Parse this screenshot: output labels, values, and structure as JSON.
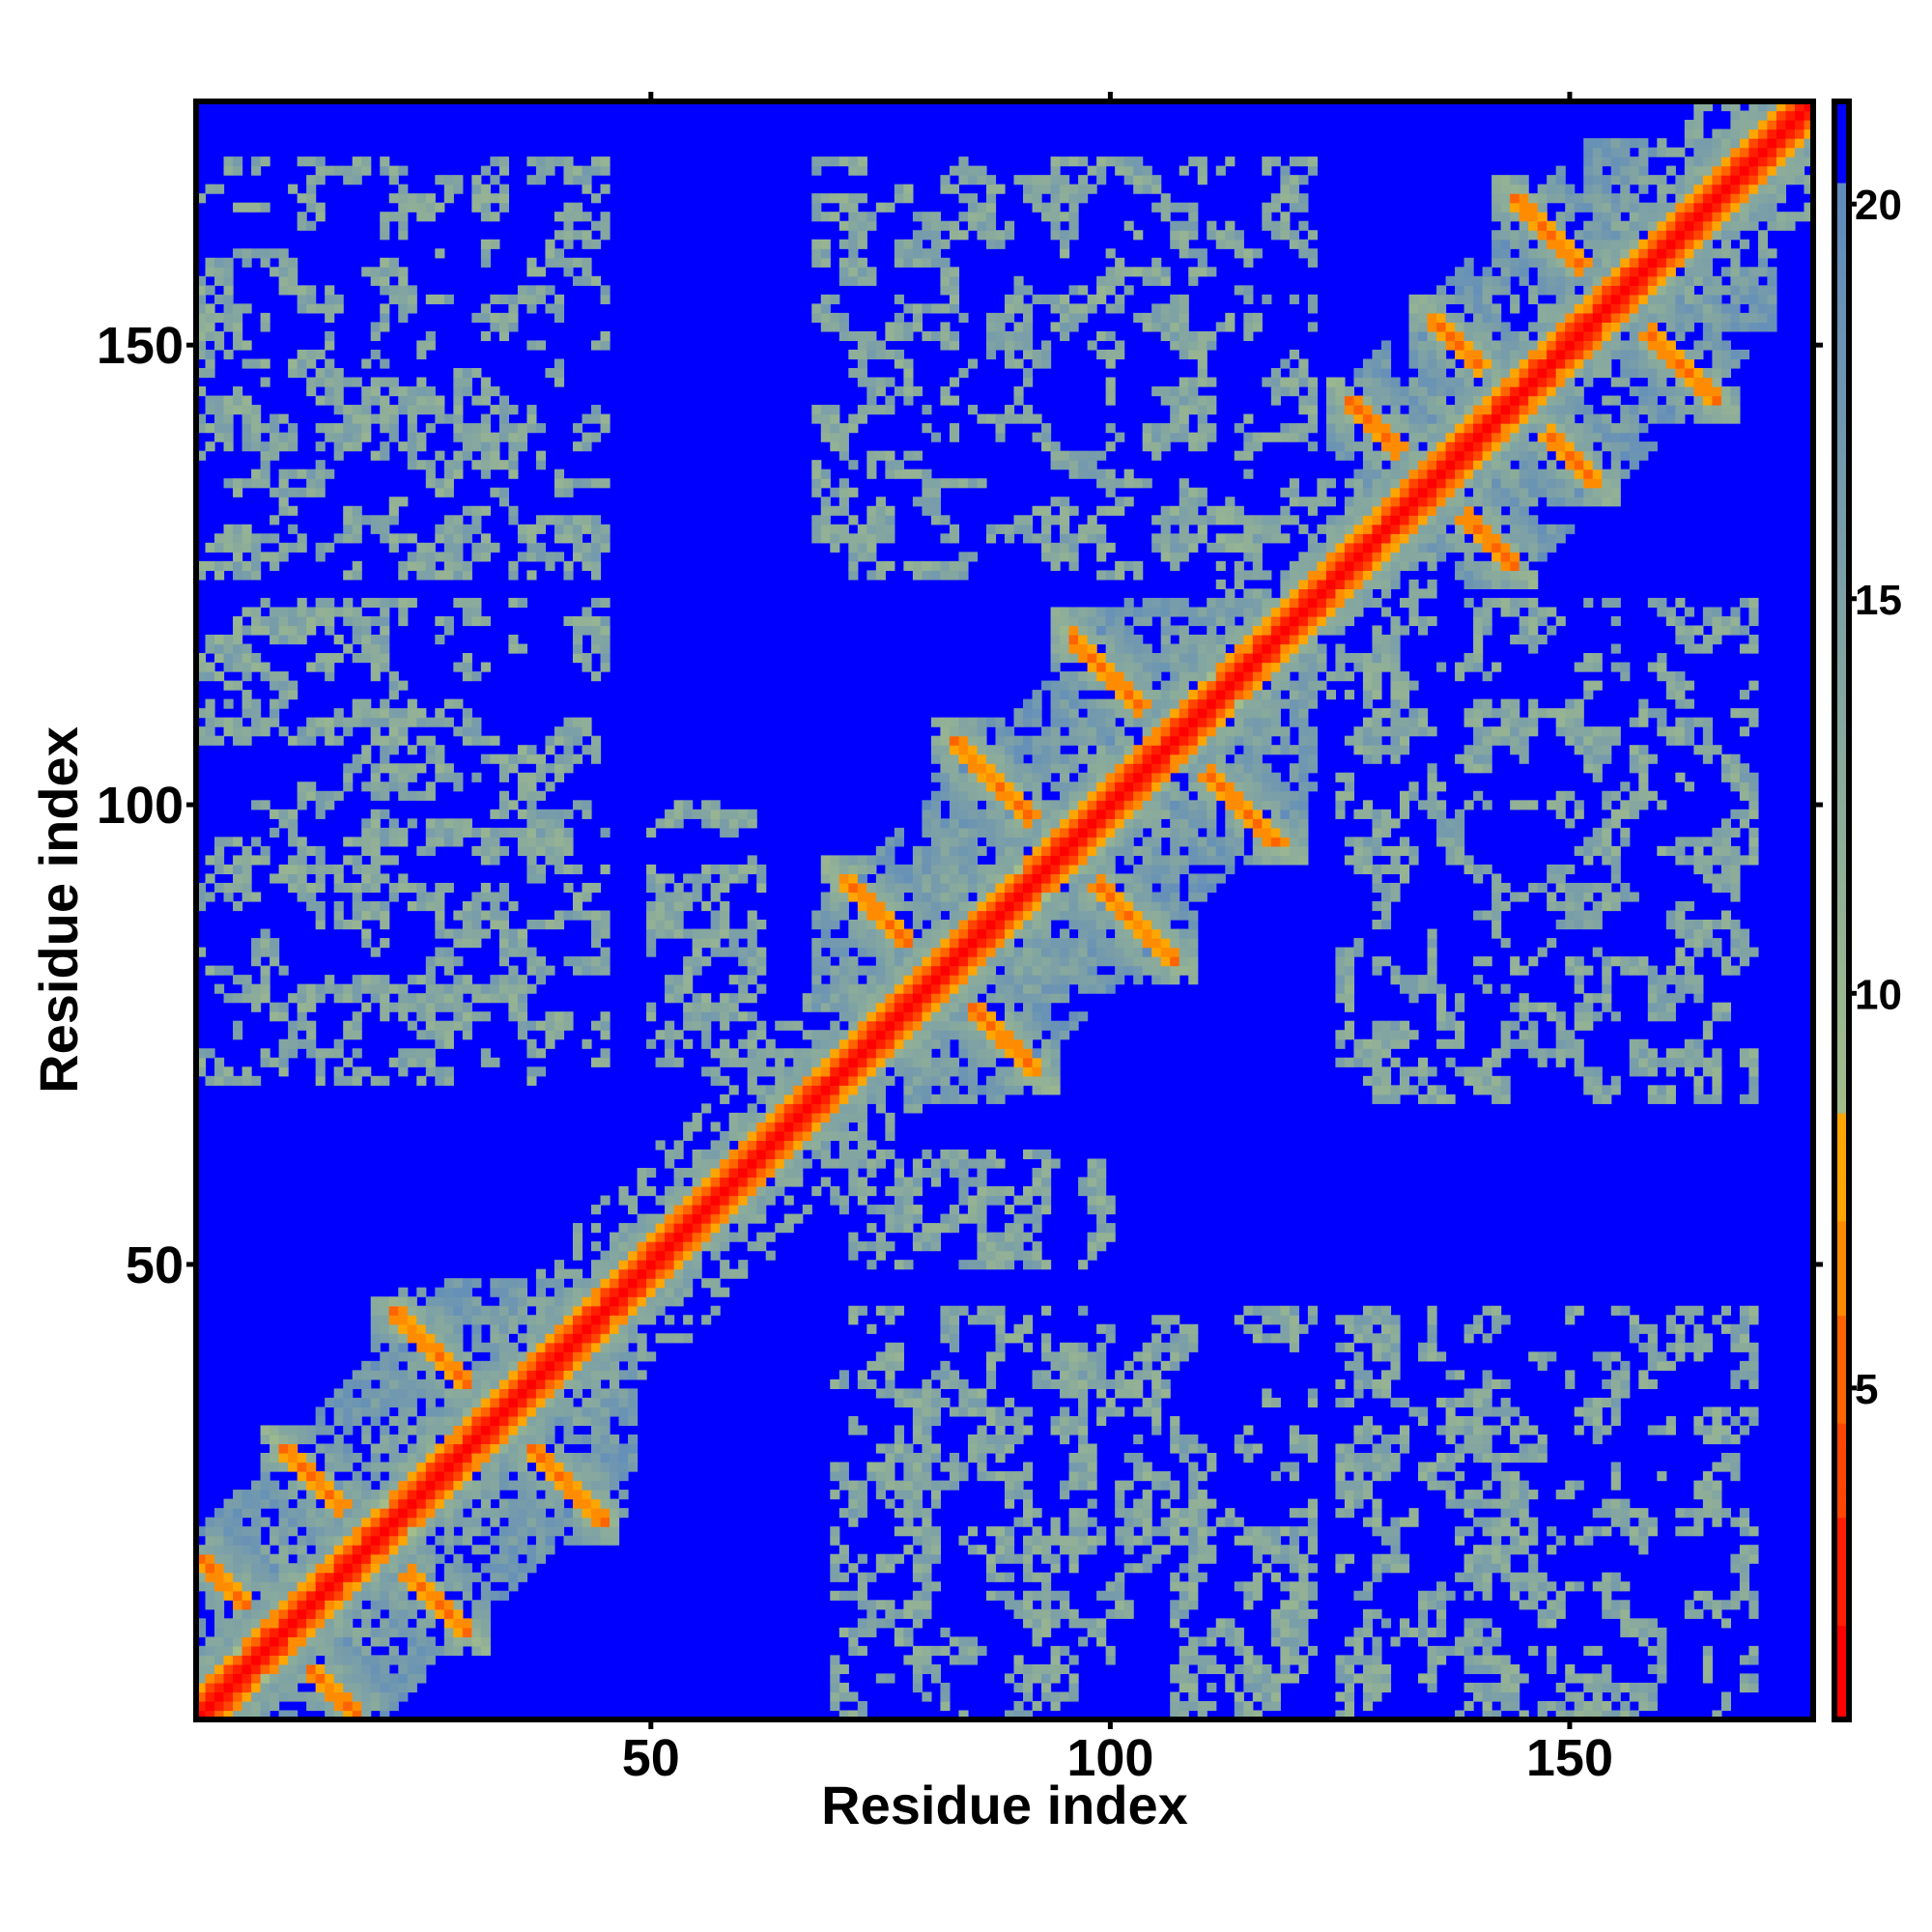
{
  "chart_data": {
    "type": "heatmap",
    "title": "",
    "xlabel": "Residue index",
    "ylabel": "Residue index",
    "n_residues": 176,
    "xlim": [
      0.5,
      176.5
    ],
    "ylim": [
      0.5,
      176.5
    ],
    "x_ticks": [
      50,
      100,
      150
    ],
    "y_ticks": [
      50,
      100,
      150
    ],
    "x_tick_labels": [
      "50",
      "100",
      "150"
    ],
    "y_tick_labels": [
      "50",
      "100",
      "150"
    ],
    "colorbar": {
      "range": [
        0.8,
        21.3
      ],
      "ticks": [
        5,
        10,
        15,
        20
      ],
      "tick_labels": [
        "5",
        "10",
        "15",
        "20"
      ],
      "steps": [
        {
          "max": 2.07,
          "color": "#ff0000"
        },
        {
          "max": 3.34,
          "color": "#ff1e00"
        },
        {
          "max": 4.6,
          "color": "#ff4500"
        },
        {
          "max": 5.9,
          "color": "#ff6400"
        },
        {
          "max": 7.2,
          "color": "#ff8c00"
        },
        {
          "max": 8.45,
          "color": "#ffa500"
        }
      ],
      "gradient_from": {
        "value": 8.45,
        "color": "#a3bd89"
      },
      "gradient_to": {
        "value": 20.2,
        "color": "#5f8bbd"
      },
      "above_color": "#0000ff"
    },
    "symmetric": true,
    "domains": [
      [
        1,
        48
      ],
      [
        68,
        122
      ],
      [
        124,
        172
      ]
    ],
    "antiparallel_bands": [
      {
        "sum": 19,
        "lo": 1,
        "hi": 18
      },
      {
        "sum": 40,
        "lo": 10,
        "hi": 30
      },
      {
        "sum": 67,
        "lo": 22,
        "hi": 45
      },
      {
        "sum": 163,
        "lo": 71,
        "hi": 92
      },
      {
        "sum": 190,
        "lo": 83,
        "hi": 107
      },
      {
        "sum": 214,
        "lo": 96,
        "hi": 119
      },
      {
        "sum": 270,
        "lo": 126,
        "hi": 144
      },
      {
        "sum": 288,
        "lo": 135,
        "hi": 153
      },
      {
        "sum": 310,
        "lo": 144,
        "hi": 166
      }
    ],
    "interdomain_contact_regions": [
      {
        "x": [
          1,
          45
        ],
        "y": [
          70,
          122
        ]
      },
      {
        "x": [
          1,
          45
        ],
        "y": [
          125,
          170
        ]
      },
      {
        "x": [
          68,
          122
        ],
        "y": [
          125,
          170
        ]
      },
      {
        "x": [
          50,
          62
        ],
        "y": [
          70,
          100
        ]
      }
    ],
    "no_contact_value": 22
  }
}
